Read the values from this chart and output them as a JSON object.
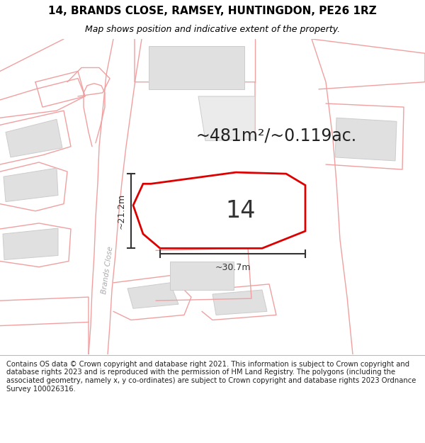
{
  "title_line1": "14, BRANDS CLOSE, RAMSEY, HUNTINGDON, PE26 1RZ",
  "title_line2": "Map shows position and indicative extent of the property.",
  "area_text": "~481m²/~0.119ac.",
  "label_14": "14",
  "dim_horiz": "~30.7m",
  "dim_vert": "~21.2m",
  "road_label": "Brands Close",
  "footer": "Contains OS data © Crown copyright and database right 2021. This information is subject to Crown copyright and database rights 2023 and is reproduced with the permission of HM Land Registry. The polygons (including the associated geometry, namely x, y co-ordinates) are subject to Crown copyright and database rights 2023 Ordnance Survey 100026316.",
  "bg_color": "#ffffff",
  "map_bg": "#ffffff",
  "polygon_color": "#dd0000",
  "road_color": "#f0a0a0",
  "building_fill": "#e0e0e0",
  "building_stroke": "#cccccc",
  "dim_color": "#333333",
  "title_fontsize": 11,
  "subtitle_fontsize": 9,
  "area_fontsize": 17,
  "label_fontsize": 24,
  "footer_fontsize": 7.2,
  "footer_bg": "#f0f0f0"
}
